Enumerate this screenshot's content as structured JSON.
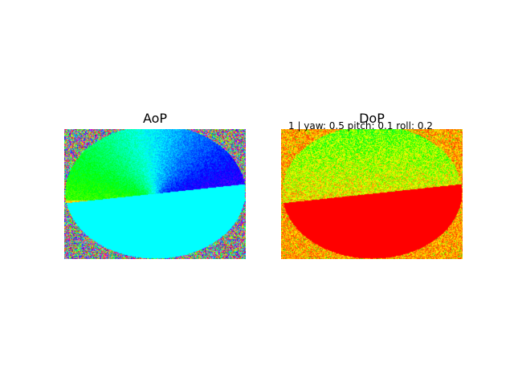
{
  "panels": {
    "aop": {
      "title": "AoP"
    },
    "dop": {
      "title": "DoP"
    }
  },
  "overlay": {
    "text": "1 | yaw: 0.5 pitch: 0.1 roll: 0.2"
  },
  "colors": {
    "aop_fill": "#00ffff",
    "dop_fill": "#ff0000",
    "dop_noise_base": "#ffaa00"
  }
}
